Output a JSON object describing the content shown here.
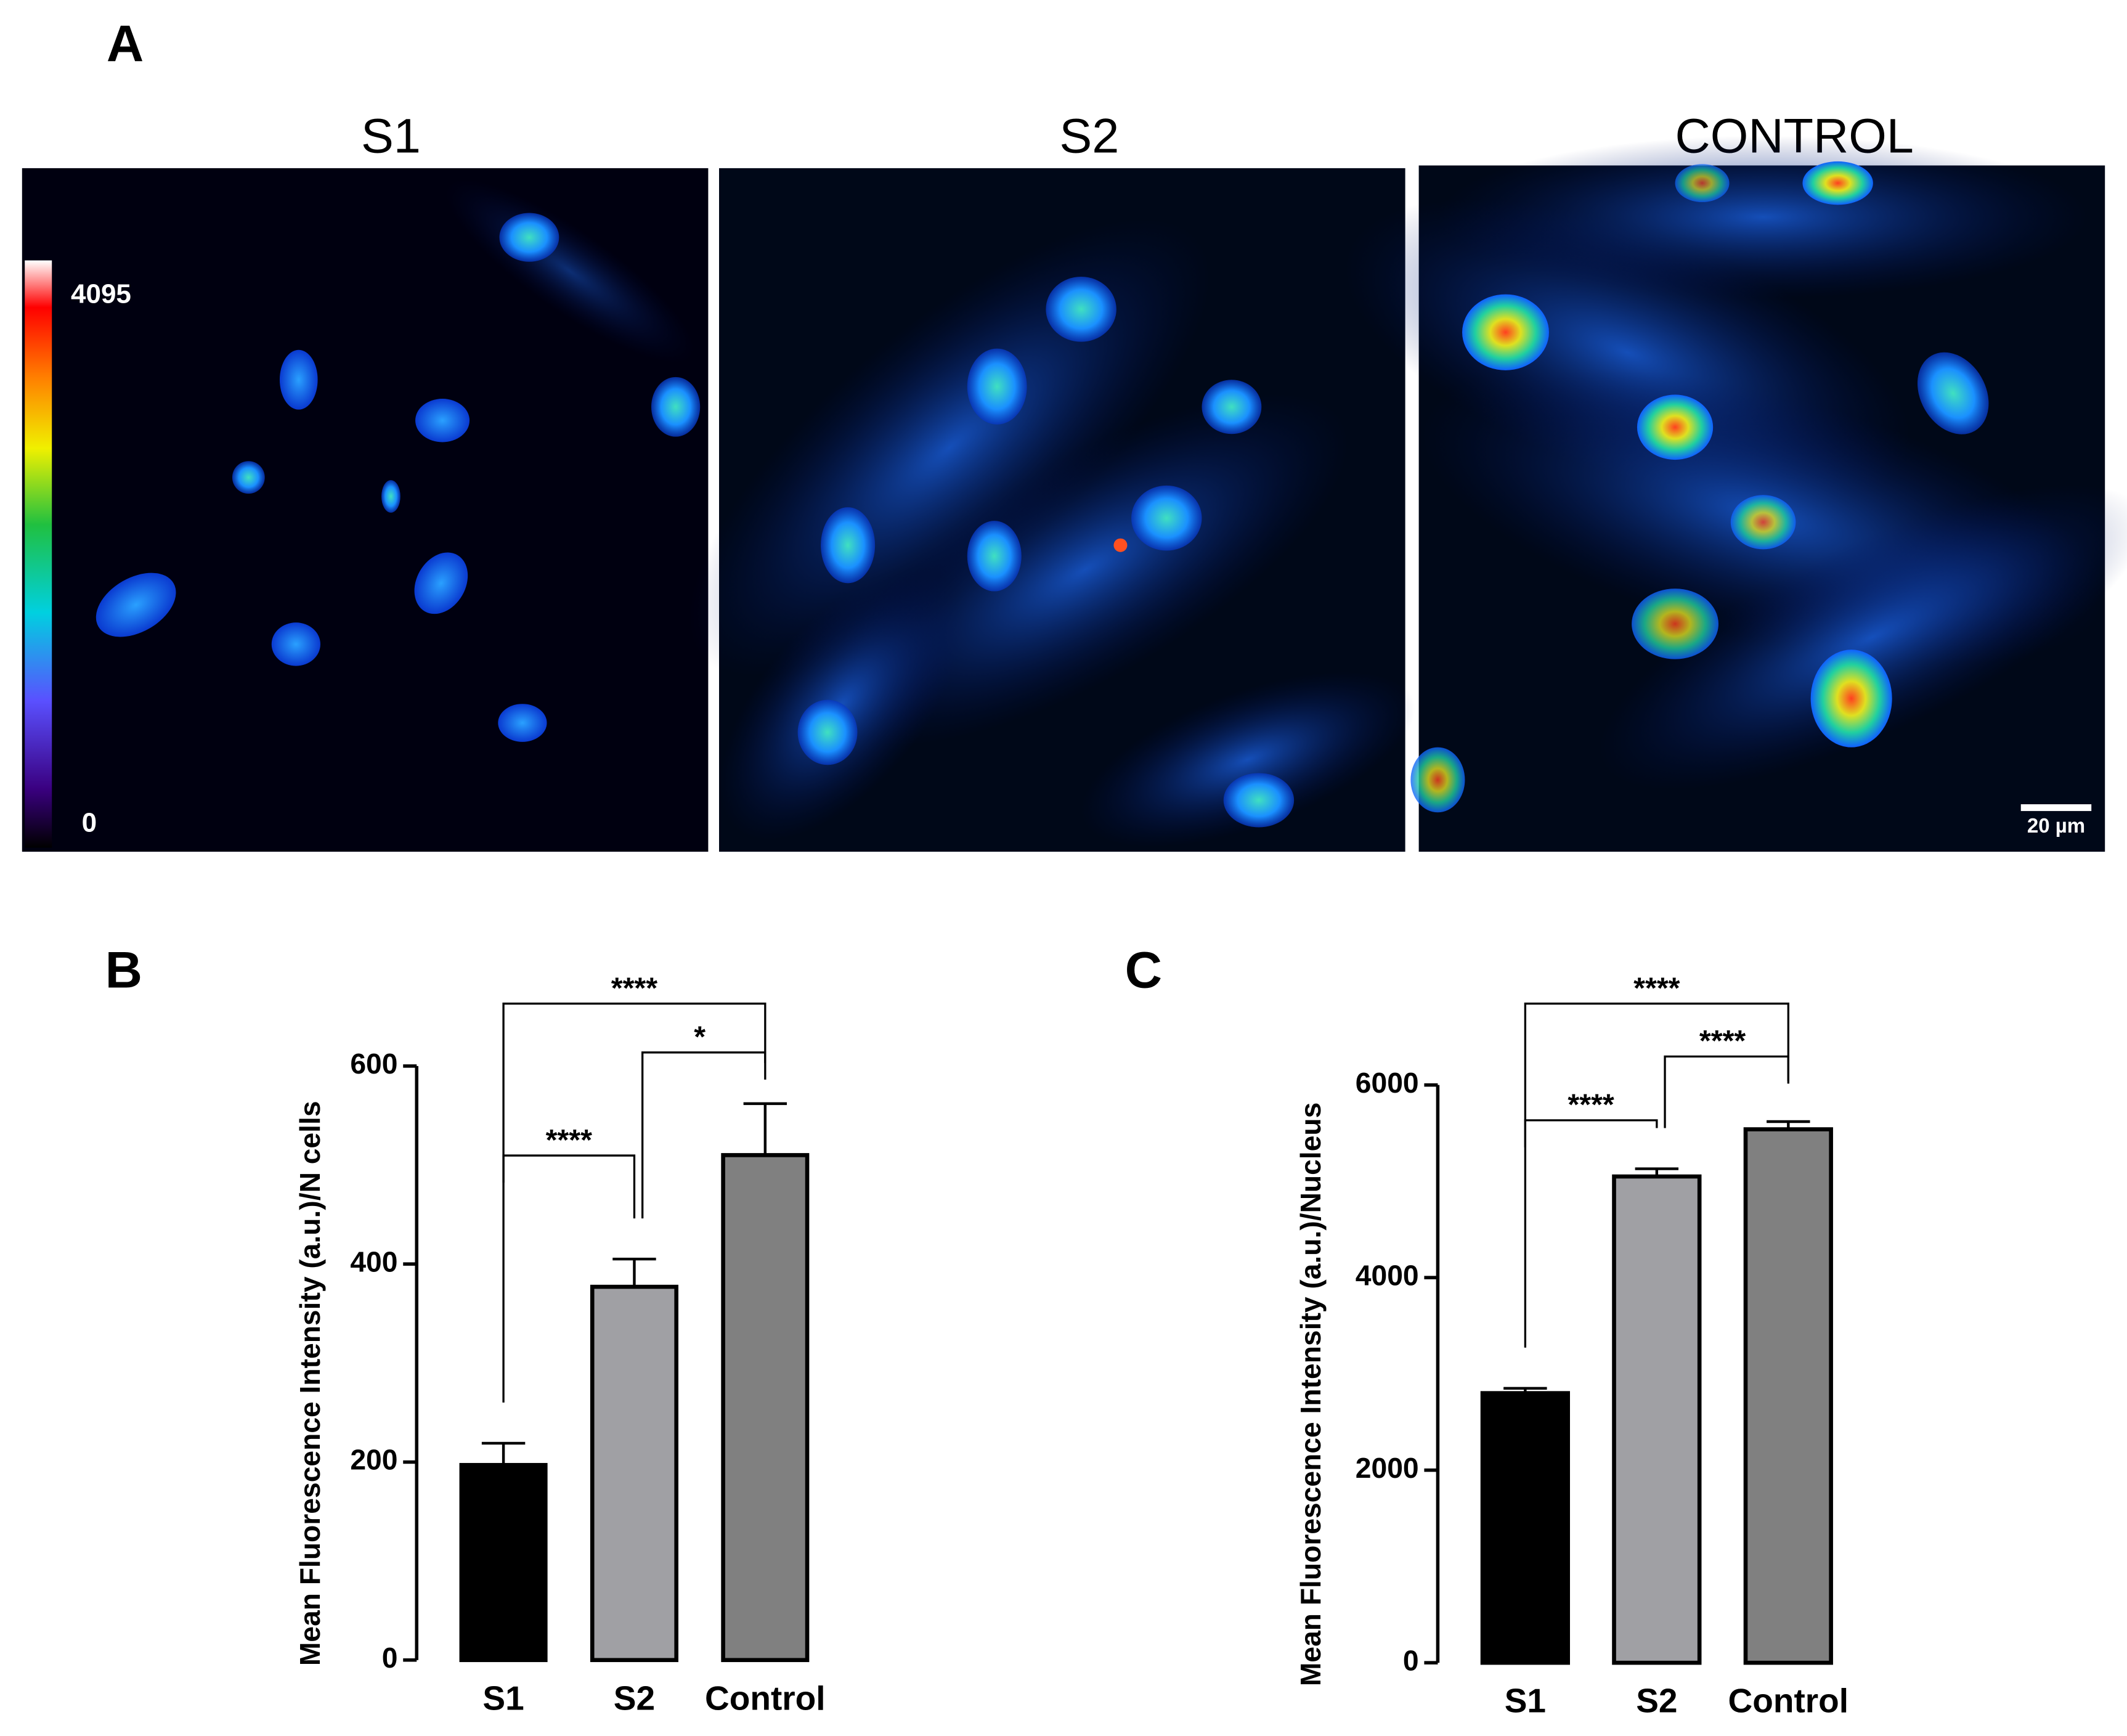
{
  "panel_a": {
    "label": "A",
    "images": [
      "S1",
      "S2",
      "CONTROL"
    ],
    "colorbar_ticks": [
      4095,
      0
    ],
    "scale_bar": "20 µm"
  },
  "chart_data": [
    {
      "type": "bar",
      "panel_label": "B",
      "ylabel": "Mean Fluorescence Intensity (a.u.)/N cells",
      "categories": [
        "S1",
        "S2",
        "Control"
      ],
      "values": [
        197,
        377,
        510
      ],
      "errors": [
        22,
        28,
        52
      ],
      "colors": [
        "#000000",
        "#a0a0a4",
        "#808080"
      ],
      "ylim": [
        0,
        600
      ],
      "yticks": [
        0,
        200,
        400,
        600
      ],
      "comparisons": [
        {
          "groups": [
            "S1",
            "S2"
          ],
          "label": "****"
        },
        {
          "groups": [
            "S2",
            "Control"
          ],
          "label": "*"
        },
        {
          "groups": [
            "S1",
            "Control"
          ],
          "label": "****"
        }
      ]
    },
    {
      "type": "bar",
      "panel_label": "C",
      "ylabel": "Mean Fluorescence Intensity (a.u.)/Nucleus",
      "categories": [
        "S1",
        "S2",
        "Control"
      ],
      "values": [
        2800,
        5050,
        5540
      ],
      "errors": [
        50,
        80,
        80
      ],
      "colors": [
        "#000000",
        "#a0a0a4",
        "#808080"
      ],
      "ylim": [
        0,
        6000
      ],
      "yticks": [
        0,
        2000,
        4000,
        6000
      ],
      "comparisons": [
        {
          "groups": [
            "S1",
            "S2"
          ],
          "label": "****"
        },
        {
          "groups": [
            "S2",
            "Control"
          ],
          "label": "****"
        },
        {
          "groups": [
            "S1",
            "Control"
          ],
          "label": "****"
        }
      ]
    }
  ]
}
